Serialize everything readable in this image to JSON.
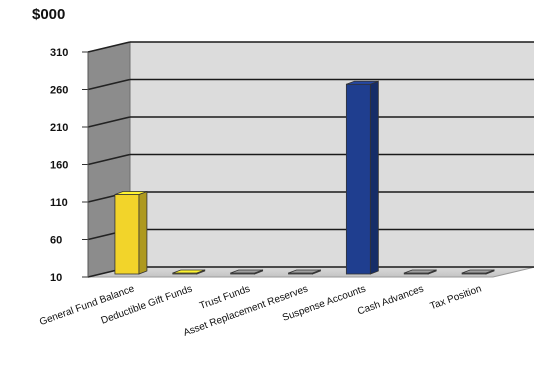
{
  "chart_data": {
    "type": "bar",
    "title": "",
    "ylabel": "$000",
    "xlabel": "",
    "ylim": [
      10,
      310
    ],
    "yticks": [
      10,
      60,
      110,
      160,
      210,
      260,
      310
    ],
    "grid": true,
    "three_d": true,
    "legend": "none",
    "categories": [
      "General Fund Balance",
      "Deductible Gift Funds",
      "Trust Funds",
      "Asset Replacement Reserves",
      "Suspense Accounts",
      "Cash Advances",
      "Tax Position"
    ],
    "values": [
      120,
      0,
      0,
      0,
      267,
      0,
      0
    ],
    "bar_colors": [
      "#f2d42a",
      "#f2d42a",
      "#8a8a8a",
      "#8a8a8a",
      "#1f3e8f",
      "#8a8a8a",
      "#8a8a8a"
    ]
  }
}
